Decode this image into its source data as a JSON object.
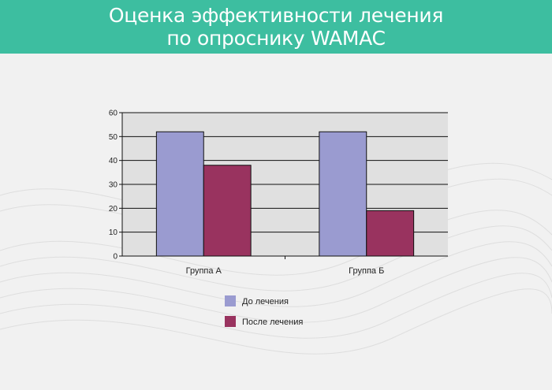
{
  "header": {
    "title_line1": "Оценка эффективности лечения",
    "title_line2": "по опроснику WAMAC"
  },
  "chart_data": {
    "type": "bar",
    "categories": [
      "Группа А",
      "Группа Б"
    ],
    "series": [
      {
        "name": "До лечения",
        "values": [
          52,
          52
        ],
        "color": "#9a9bd0"
      },
      {
        "name": "После лечения",
        "values": [
          38,
          19
        ],
        "color": "#99335f"
      }
    ],
    "ylim": [
      0,
      60
    ],
    "yticks": [
      0,
      10,
      20,
      30,
      40,
      50,
      60
    ],
    "grid": true,
    "legend_position": "bottom",
    "plot_background": "#e0e0e0"
  },
  "colors": {
    "header": "#3dbea0"
  }
}
